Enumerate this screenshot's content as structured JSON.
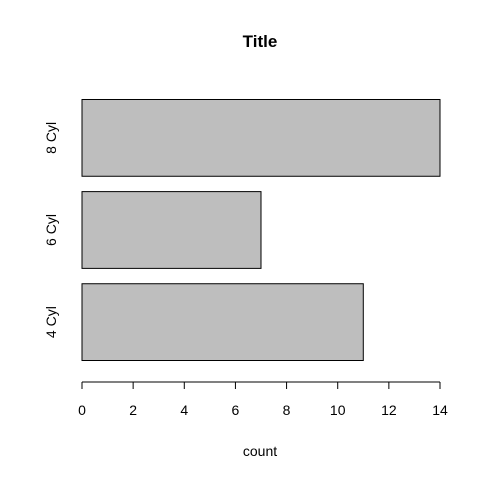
{
  "chart_data": {
    "type": "bar",
    "orientation": "horizontal",
    "title": "Title",
    "xlabel": "count",
    "ylabel": "",
    "categories": [
      "4 Cyl",
      "6 Cyl",
      "8 Cyl"
    ],
    "values": [
      11,
      7,
      14
    ],
    "xlim": [
      0,
      14
    ],
    "xticks": [
      0,
      2,
      4,
      6,
      8,
      10,
      12,
      14
    ],
    "grid": false,
    "legend": "none",
    "colors": {
      "bar_fill": "#bebebe",
      "bar_stroke": "#000000",
      "axis": "#000000",
      "text": "#000000",
      "background": "#ffffff"
    }
  }
}
